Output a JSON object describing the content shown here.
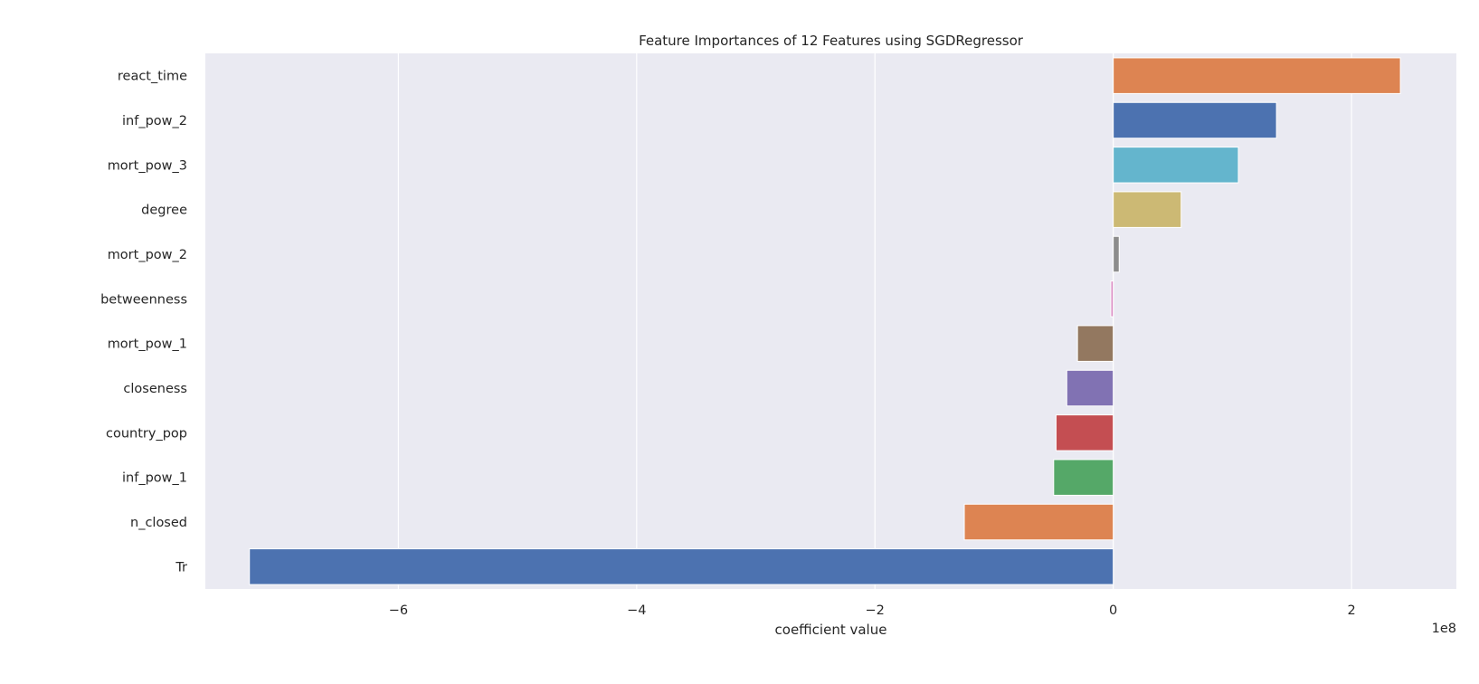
{
  "chart_data": {
    "type": "bar",
    "orientation": "horizontal",
    "title": "Feature Importances of 12 Features using SGDRegressor",
    "xlabel": "coefficient value",
    "ylabel": "",
    "x_scale_label": "1e8",
    "categories": [
      "react_time",
      "inf_pow_2",
      "mort_pow_3",
      "degree",
      "mort_pow_2",
      "betweenness",
      "mort_pow_1",
      "closeness",
      "country_pop",
      "inf_pow_1",
      "n_closed",
      "Tr"
    ],
    "values": [
      2.41,
      1.37,
      1.05,
      0.57,
      0.05,
      -0.02,
      -0.3,
      -0.39,
      -0.48,
      -0.5,
      -1.25,
      -7.25
    ],
    "colors": [
      "#dd8452",
      "#4c72b0",
      "#64b5cd",
      "#ccb974",
      "#8c8c8c",
      "#da8bc3",
      "#937860",
      "#8172b3",
      "#c44e52",
      "#55a868",
      "#dd8452",
      "#4c72b0"
    ],
    "xlim": [
      -7.62,
      2.88
    ],
    "xticks": [
      -6,
      -4,
      -2,
      0,
      2
    ],
    "xtick_labels": [
      "−6",
      "−4",
      "−2",
      "0",
      "2"
    ],
    "grid": true,
    "background": "#eaeaf2"
  }
}
